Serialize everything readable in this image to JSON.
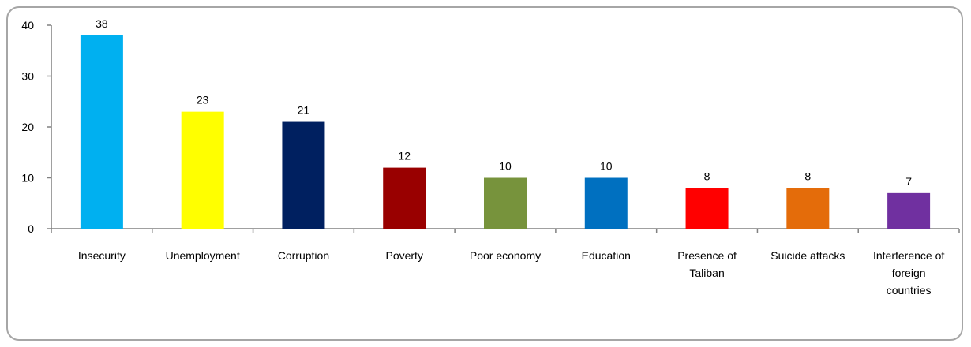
{
  "chart_data": {
    "type": "bar",
    "title": "",
    "xlabel": "",
    "ylabel": "",
    "ylim": [
      0,
      40
    ],
    "yticks": [
      0,
      10,
      20,
      30,
      40
    ],
    "grid": false,
    "legend": "none",
    "categories": [
      [
        "Insecurity"
      ],
      [
        "Unemployment"
      ],
      [
        "Corruption"
      ],
      [
        "Poverty"
      ],
      [
        "Poor economy"
      ],
      [
        "Education"
      ],
      [
        "Presence of",
        "Taliban"
      ],
      [
        "Suicide attacks"
      ],
      [
        "Interference of",
        "foreign",
        "countries"
      ]
    ],
    "values": [
      38,
      23,
      21,
      12,
      10,
      10,
      8,
      8,
      7
    ],
    "colors": [
      "#00b0f0",
      "#ffff00",
      "#002060",
      "#990000",
      "#77933c",
      "#0070c0",
      "#ff0000",
      "#e46c0a",
      "#7030a0"
    ]
  }
}
